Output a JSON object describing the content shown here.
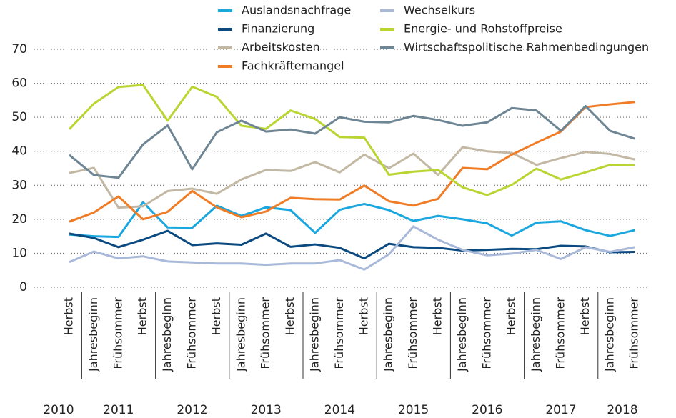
{
  "chart_data": {
    "type": "line",
    "groups": [
      {
        "label": "2010",
        "categories": [
          "Herbst"
        ]
      },
      {
        "label": "2011",
        "categories": [
          "Jahresbeginn",
          "Frühsommer",
          "Herbst"
        ]
      },
      {
        "label": "2012",
        "categories": [
          "Jahresbeginn",
          "Frühsommer",
          "Herbst"
        ]
      },
      {
        "label": "2013",
        "categories": [
          "Jahresbeginn",
          "Frühsommer",
          "Herbst"
        ]
      },
      {
        "label": "2014",
        "categories": [
          "Jahresbeginn",
          "Frühsommer",
          "Herbst"
        ]
      },
      {
        "label": "2015",
        "categories": [
          "Jahresbeginn",
          "Frühsommer",
          "Herbst"
        ]
      },
      {
        "label": "2016",
        "categories": [
          "Jahresbeginn",
          "Frühsommer",
          "Herbst"
        ]
      },
      {
        "label": "2017",
        "categories": [
          "Jahresbeginn",
          "Frühsommer",
          "Herbst"
        ]
      },
      {
        "label": "2018",
        "categories": [
          "Jahresbeginn",
          "Frühsommer"
        ]
      }
    ],
    "series": [
      {
        "name": "Auslandsnachfrage",
        "color": "#1aa7e0",
        "values": [
          15.5,
          15,
          14.8,
          25,
          17.6,
          17.5,
          24,
          21,
          23.5,
          22.7,
          16,
          22.8,
          24.5,
          22.7,
          19.5,
          21,
          20,
          18.8,
          15.2,
          19,
          19.4,
          16.8,
          15.1,
          16.8
        ]
      },
      {
        "name": "Finanzierung",
        "color": "#0b4a80",
        "values": [
          15.8,
          14.5,
          11.8,
          14,
          16.6,
          12.4,
          12.9,
          12.5,
          15.8,
          11.9,
          12.6,
          11.6,
          8.5,
          12.8,
          11.8,
          11.6,
          10.8,
          11,
          11.3,
          11.2,
          12.2,
          12,
          10.3,
          10.4
        ]
      },
      {
        "name": "Arbeitskosten",
        "color": "#c2b8a3",
        "values": [
          33.6,
          35.1,
          23.4,
          23.8,
          28.3,
          29,
          27.5,
          31.7,
          34.5,
          34.2,
          36.8,
          33.8,
          39,
          35,
          39.3,
          33,
          41.2,
          40,
          39.5,
          36,
          38,
          39.8,
          39.2,
          37.6
        ]
      },
      {
        "name": "Fachkräftemangel",
        "color": "#f07d26",
        "values": [
          19.3,
          22,
          26.7,
          20,
          22.2,
          28.3,
          23.5,
          20.6,
          22.3,
          26.3,
          25.9,
          25.8,
          29.9,
          25.3,
          24,
          26,
          35.1,
          34.7,
          39,
          42.5,
          45.8,
          53,
          53.8,
          54.5
        ]
      },
      {
        "name": "Wechselkurs",
        "color": "#a9b9d9",
        "values": [
          7.4,
          10.5,
          8.5,
          9.1,
          7.6,
          7.3,
          7,
          7,
          6.6,
          7,
          7,
          8,
          5.2,
          9.7,
          17.9,
          14,
          11,
          9.4,
          9.9,
          11,
          8.3,
          11.8,
          10.4,
          11.8
        ]
      },
      {
        "name": "Energie- und Rohstoffpreise",
        "color": "#b9d531",
        "values": [
          46.5,
          54,
          58.9,
          59.5,
          49,
          59,
          56,
          47.5,
          46.6,
          52,
          49.5,
          44.2,
          44,
          33.1,
          34,
          34.5,
          29.4,
          27.1,
          30.1,
          34.9,
          31.7,
          33.8,
          36,
          35.9
        ]
      },
      {
        "name": "Wirtschaftspolitische Rahmenbedingungen",
        "color": "#6e8594",
        "values": [
          38.9,
          33,
          32.2,
          42,
          47.6,
          34.7,
          45.6,
          49,
          45.8,
          46.4,
          45.2,
          50,
          48.7,
          48.5,
          50.4,
          49.2,
          47.5,
          48.5,
          52.7,
          52,
          46,
          53.3,
          46,
          43.7
        ]
      }
    ],
    "ylim": [
      0,
      70
    ],
    "yticks": [
      0,
      10,
      20,
      30,
      40,
      50,
      60,
      70
    ],
    "grid": true
  }
}
